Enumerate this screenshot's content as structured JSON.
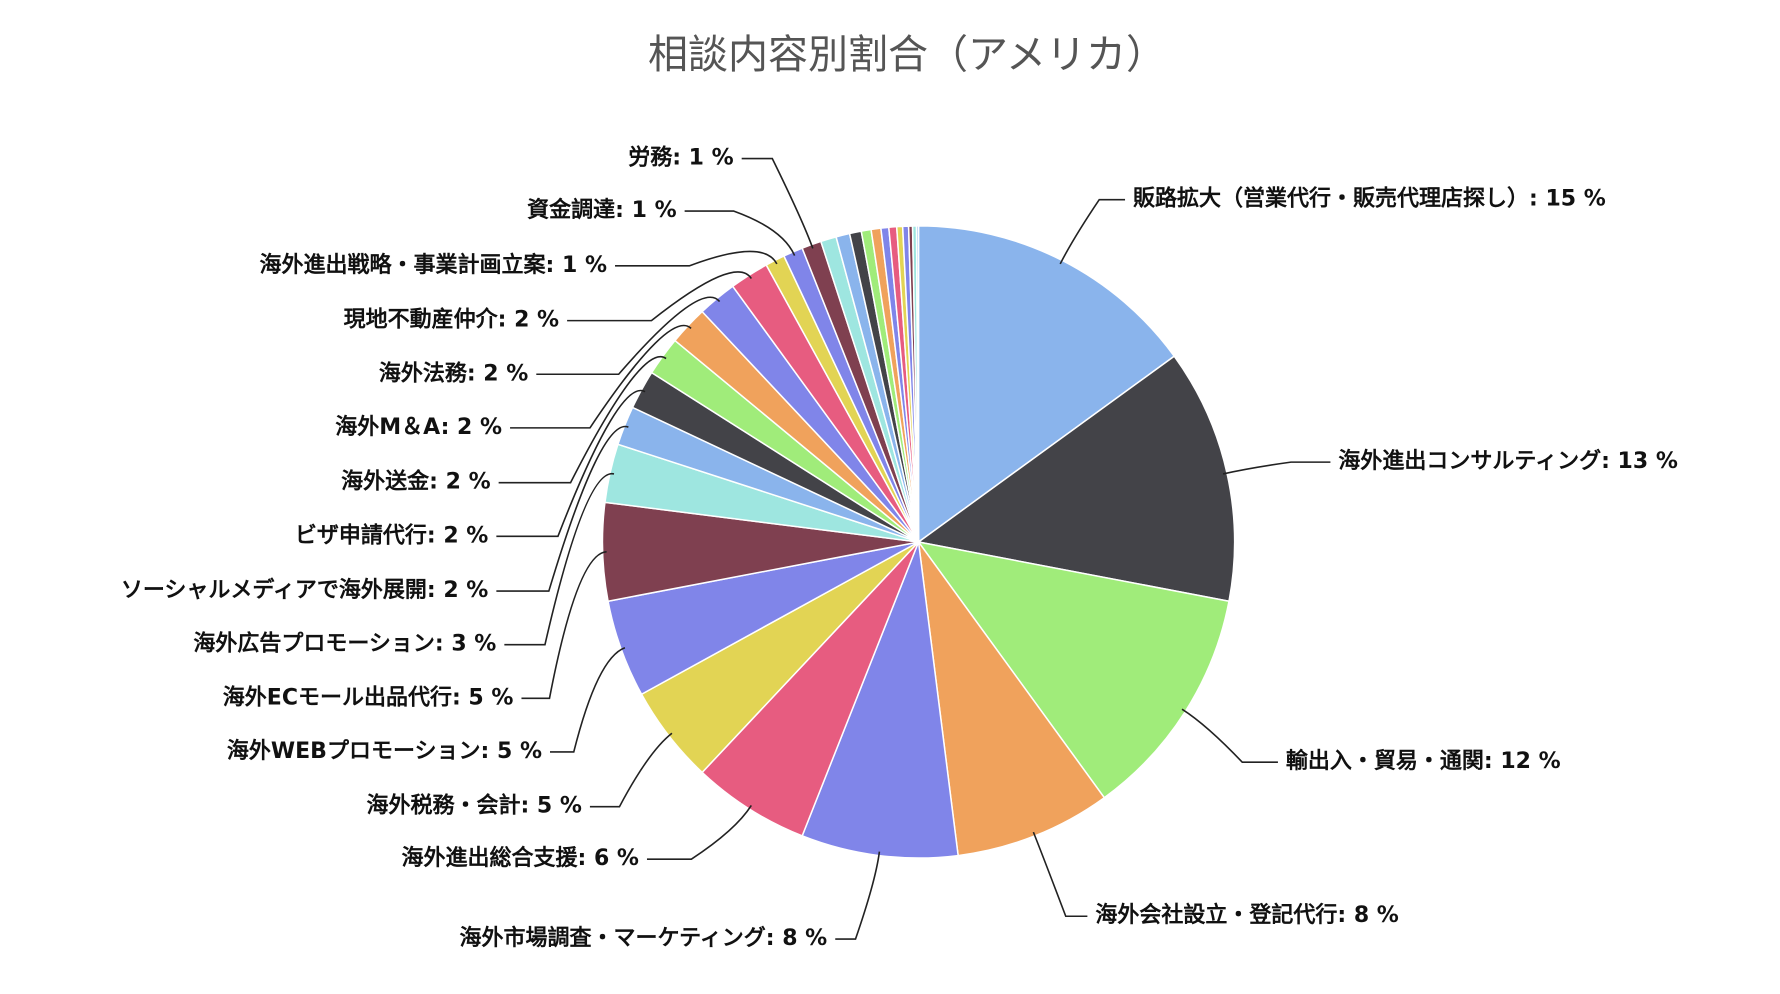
{
  "chart_data": {
    "type": "pie",
    "title": "相談内容別割合（アメリカ）",
    "values": [
      15,
      13,
      12,
      8,
      8,
      6,
      5,
      5,
      5,
      3,
      2,
      2,
      2,
      2,
      2,
      2,
      1,
      1,
      1,
      0.8,
      0.7,
      0.6,
      0.5,
      0.5,
      0.4,
      0.4,
      0.3,
      0.3,
      0.2,
      0.2,
      0.1
    ],
    "value_labels": [
      "販路拡大（営業代行・販売代理店探し）: 15 %",
      "海外進出コンサルティング: 13 %",
      "輸出入・貿易・通関: 12 %",
      "海外会社設立・登記代行: 8 %",
      "海外市場調査・マーケティング: 8 %",
      "海外進出総合支援: 6 %",
      "海外税務・会計: 5 %",
      "海外WEBプロモーション: 5 %",
      "海外ECモール出品代行: 5 %",
      "海外広告プロモーション: 3 %",
      "ソーシャルメディアで海外展開: 2 %",
      "ビザ申請代行: 2 %",
      "海外送金: 2 %",
      "海外M＆A: 2 %",
      "海外法務: 2 %",
      "現地不動産仲介: 2 %",
      "海外進出戦略・事業計画立案: 1 %",
      "資金調達: 1 %",
      "労務: 1 %",
      null,
      null,
      null,
      null,
      null,
      null,
      null,
      null,
      null,
      null,
      null,
      null
    ],
    "colors": [
      "#8ab4ec",
      "#434348",
      "#a0ec7a",
      "#f0a25c",
      "#8085e9",
      "#e75c80",
      "#e2d454",
      "#8085e9",
      "#7f4050",
      "#9ee6e0",
      "#8ab4ec",
      "#434348",
      "#a0ec7a",
      "#f0a25c",
      "#8085e9",
      "#e75c80",
      "#e2d454",
      "#8085e9",
      "#7f4050",
      "#9ee6e0",
      "#8ab4ec",
      "#434348",
      "#a0ec7a",
      "#f0a25c",
      "#8085e9",
      "#e75c80",
      "#e2d454",
      "#8085e9",
      "#7f4050",
      "#9ee6e0",
      "#8ab4ec"
    ]
  }
}
